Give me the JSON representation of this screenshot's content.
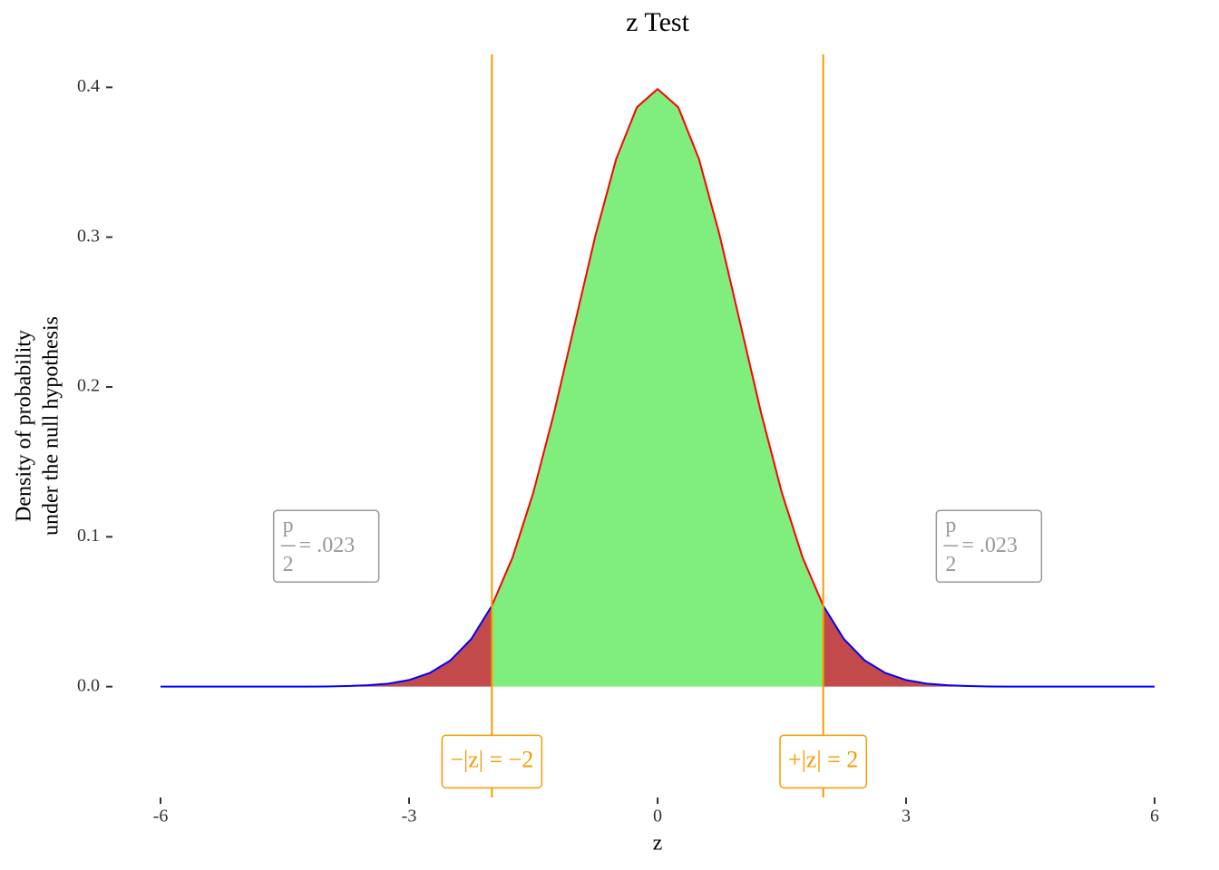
{
  "chart_data": {
    "type": "density",
    "title": "z Test",
    "x_label": "z",
    "y_label": [
      "Density of probability",
      "under the null hypothesis"
    ],
    "x": [
      -6,
      -5.75,
      -5.5,
      -5.25,
      -5,
      -4.75,
      -4.5,
      -4.25,
      -4,
      -3.75,
      -3.5,
      -3.25,
      -3,
      -2.75,
      -2.5,
      -2.25,
      -2,
      -1.75,
      -1.5,
      -1.25,
      -1,
      -0.75,
      -0.5,
      -0.25,
      0,
      0.25,
      0.5,
      0.75,
      1,
      1.25,
      1.5,
      1.75,
      2,
      2.25,
      2.5,
      2.75,
      3,
      3.25,
      3.5,
      3.75,
      4,
      4.25,
      4.5,
      4.75,
      5,
      5.25,
      5.5,
      5.75,
      6
    ],
    "y": [
      0,
      0,
      0,
      0,
      0,
      0,
      0,
      0,
      0.0001,
      0.0004,
      0.0009,
      0.002,
      0.0044,
      0.0091,
      0.0175,
      0.0317,
      0.054,
      0.0863,
      0.1295,
      0.1826,
      0.242,
      0.3011,
      0.3521,
      0.3867,
      0.3989,
      0.3867,
      0.3521,
      0.3011,
      0.242,
      0.1826,
      0.1295,
      0.0863,
      0.054,
      0.0317,
      0.0175,
      0.0091,
      0.0044,
      0.002,
      0.0009,
      0.0004,
      0.0001,
      0,
      0,
      0,
      0,
      0,
      0,
      0,
      0
    ],
    "critical_z": 2,
    "center_fill": "#80ee7c",
    "tail_fill": "#c24a4a",
    "center_line": "#ff0000",
    "tail_line": "#0000ff",
    "critical_color": "#f59b00",
    "annotation_color": "#999999",
    "xlim": [
      -6,
      6
    ],
    "ylim": [
      -0.074,
      0.422
    ],
    "xticks": [
      -6,
      -3,
      0,
      3,
      6
    ],
    "yticks": [
      {
        "value": 0,
        "label": "0.0"
      },
      0.1,
      0.2,
      0.3,
      0.4
    ],
    "critical_labels": [
      {
        "x": -2,
        "y": -0.05,
        "text": "−|z| = −2"
      },
      {
        "x": 2,
        "y": -0.05,
        "text": "+|z| = 2"
      }
    ],
    "annotations": [
      {
        "x": -4,
        "y": 0.094,
        "numerator": "p",
        "denominator": "2",
        "text": "= .023"
      },
      {
        "x": 4,
        "y": 0.094,
        "numerator": "p",
        "denominator": "2",
        "text": "= .023"
      }
    ]
  }
}
